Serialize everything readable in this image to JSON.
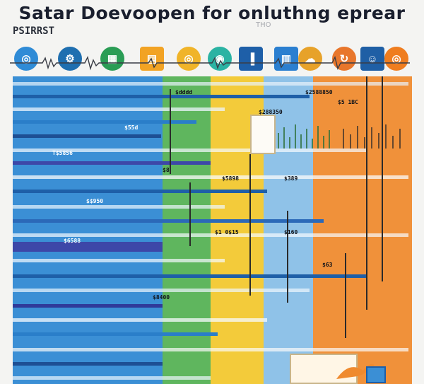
{
  "header": {
    "title": "Satar Doevoopen for onluthng eprear",
    "subtitle": "PSIRRST",
    "ghost": "THO"
  },
  "icons": [
    {
      "name": "globe-icon",
      "color": "#2f8bd6"
    },
    {
      "name": "gear-icon",
      "color": "#1f6fb0"
    },
    {
      "name": "chart-icon",
      "color": "#2a9d55"
    },
    {
      "name": "database-icon",
      "color": "#f2a324"
    },
    {
      "name": "globe-icon",
      "color": "#f0b429"
    },
    {
      "name": "target-icon",
      "color": "#2bb3a3"
    },
    {
      "name": "bar-icon",
      "color": "#1e5fa8"
    },
    {
      "name": "server-icon",
      "color": "#2b7fd0"
    },
    {
      "name": "cloud-icon",
      "color": "#e7a22a"
    },
    {
      "name": "refresh-icon",
      "color": "#e8762b"
    },
    {
      "name": "user-icon",
      "color": "#1f5fa5"
    },
    {
      "name": "globe-icon",
      "color": "#ef7d1f"
    }
  ],
  "palette": [
    "#2f8bd6",
    "#4fb05a",
    "#f2c230",
    "#7fb6e3",
    "#ef8a2e"
  ],
  "labels": {
    "l1": "$dddd",
    "l2": "$55d",
    "l3": "T$5856",
    "l4": "$2588850",
    "l5": "$5 1BC",
    "l6": "$288350",
    "l7": "$8",
    "l8": "$5898",
    "l9": "$389",
    "l10": "$$950",
    "l11": "$1 0$15",
    "l12": "$160",
    "l13": "$6588",
    "l14": "$63",
    "l15": "$8400"
  }
}
